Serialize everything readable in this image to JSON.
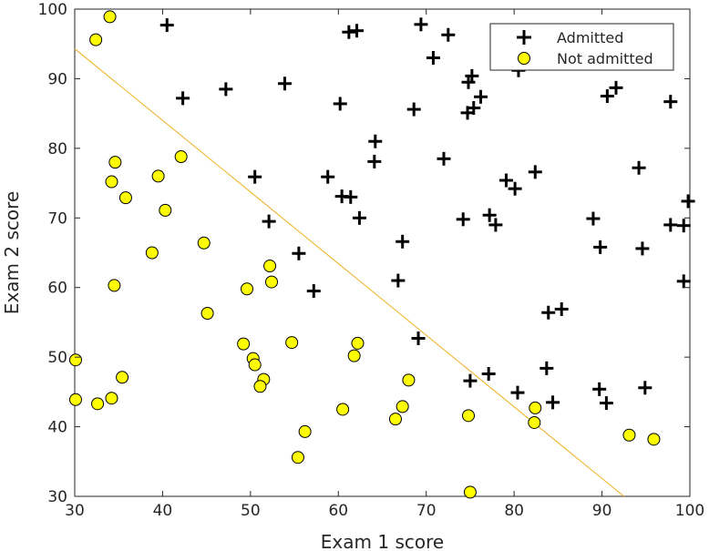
{
  "chart_data": {
    "type": "scatter",
    "title": "",
    "xlabel": "Exam 1 score",
    "ylabel": "Exam 2 score",
    "xlim": [
      30,
      100
    ],
    "ylim": [
      30,
      100
    ],
    "xticks": [
      30,
      40,
      50,
      60,
      70,
      80,
      90,
      100
    ],
    "yticks": [
      30,
      40,
      50,
      60,
      70,
      80,
      90,
      100
    ],
    "grid": false,
    "legend_placement": "top-right",
    "colors": {
      "admitted": "#000000",
      "not_admitted_fill": "#ffff00",
      "not_admitted_edge": "#000000",
      "boundary": "#EDB120"
    },
    "series": [
      {
        "name": "Admitted",
        "marker": "plus",
        "points": [
          [
            40.5,
            97.7
          ],
          [
            61.2,
            96.7
          ],
          [
            62.1,
            96.9
          ],
          [
            69.4,
            97.8
          ],
          [
            72.5,
            96.3
          ],
          [
            70.8,
            93.0
          ],
          [
            42.3,
            87.2
          ],
          [
            47.2,
            88.5
          ],
          [
            53.9,
            89.3
          ],
          [
            60.2,
            86.4
          ],
          [
            68.6,
            85.6
          ],
          [
            74.8,
            89.5
          ],
          [
            75.2,
            90.4
          ],
          [
            75.4,
            85.8
          ],
          [
            74.7,
            85.1
          ],
          [
            76.2,
            87.4
          ],
          [
            80.5,
            91.2
          ],
          [
            90.6,
            87.5
          ],
          [
            91.6,
            88.7
          ],
          [
            97.8,
            86.7
          ],
          [
            64.2,
            81.0
          ],
          [
            64.1,
            78.1
          ],
          [
            72.0,
            78.5
          ],
          [
            94.2,
            77.2
          ],
          [
            50.5,
            75.9
          ],
          [
            58.8,
            75.9
          ],
          [
            60.4,
            73.1
          ],
          [
            61.4,
            73.0
          ],
          [
            79.1,
            75.4
          ],
          [
            80.1,
            74.2
          ],
          [
            82.4,
            76.6
          ],
          [
            99.8,
            72.4
          ],
          [
            52.1,
            69.5
          ],
          [
            62.4,
            70.0
          ],
          [
            74.2,
            69.8
          ],
          [
            77.2,
            70.4
          ],
          [
            77.9,
            69.0
          ],
          [
            89.0,
            69.9
          ],
          [
            97.8,
            69.0
          ],
          [
            99.3,
            68.9
          ],
          [
            89.8,
            65.8
          ],
          [
            94.6,
            65.6
          ],
          [
            55.5,
            64.9
          ],
          [
            67.3,
            66.6
          ],
          [
            66.8,
            61.0
          ],
          [
            99.3,
            60.9
          ],
          [
            57.2,
            59.5
          ],
          [
            83.9,
            56.4
          ],
          [
            85.4,
            56.9
          ],
          [
            69.1,
            52.7
          ],
          [
            83.7,
            48.4
          ],
          [
            75.0,
            46.6
          ],
          [
            77.1,
            47.6
          ],
          [
            80.4,
            44.9
          ],
          [
            84.4,
            43.5
          ],
          [
            89.7,
            45.4
          ],
          [
            90.5,
            43.4
          ],
          [
            94.9,
            45.6
          ]
        ]
      },
      {
        "name": "Not admitted",
        "marker": "circle",
        "points": [
          [
            34.0,
            98.9
          ],
          [
            32.4,
            95.6
          ],
          [
            34.6,
            78.0
          ],
          [
            42.1,
            78.8
          ],
          [
            39.5,
            76.0
          ],
          [
            34.2,
            75.2
          ],
          [
            35.8,
            72.9
          ],
          [
            40.3,
            71.1
          ],
          [
            44.7,
            66.4
          ],
          [
            38.8,
            65.0
          ],
          [
            52.2,
            63.1
          ],
          [
            34.5,
            60.3
          ],
          [
            52.4,
            60.8
          ],
          [
            49.6,
            59.8
          ],
          [
            45.1,
            56.3
          ],
          [
            49.2,
            51.9
          ],
          [
            54.7,
            52.1
          ],
          [
            62.2,
            52.0
          ],
          [
            61.8,
            50.2
          ],
          [
            30.1,
            49.6
          ],
          [
            50.3,
            49.8
          ],
          [
            50.5,
            48.9
          ],
          [
            35.4,
            47.1
          ],
          [
            51.5,
            46.8
          ],
          [
            51.1,
            45.8
          ],
          [
            68.0,
            46.7
          ],
          [
            30.1,
            43.9
          ],
          [
            32.6,
            43.3
          ],
          [
            34.2,
            44.1
          ],
          [
            60.5,
            42.5
          ],
          [
            67.3,
            42.9
          ],
          [
            74.8,
            41.6
          ],
          [
            82.4,
            42.7
          ],
          [
            66.5,
            41.1
          ],
          [
            82.3,
            40.6
          ],
          [
            56.2,
            39.3
          ],
          [
            93.1,
            38.8
          ],
          [
            95.9,
            38.2
          ],
          [
            55.4,
            35.6
          ],
          [
            75.0,
            30.6
          ]
        ]
      },
      {
        "name": "",
        "type": "line",
        "points": [
          [
            30,
            94.3
          ],
          [
            92.5,
            30
          ]
        ]
      }
    ]
  }
}
